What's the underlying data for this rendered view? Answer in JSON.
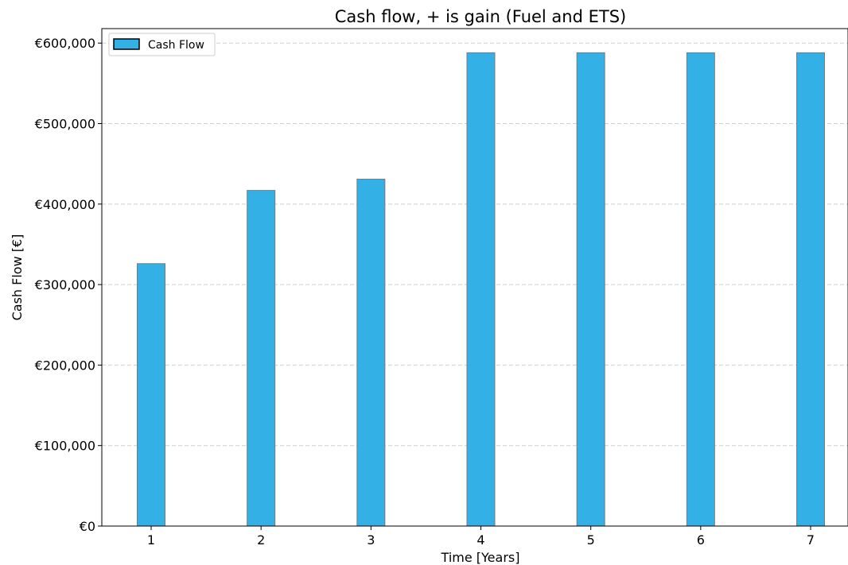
{
  "chart_data": {
    "type": "bar",
    "title": "Cash flow, + is gain (Fuel and ETS)",
    "xlabel": "Time [Years]",
    "ylabel": "Cash Flow [€]",
    "categories": [
      "1",
      "2",
      "3",
      "4",
      "5",
      "6",
      "7"
    ],
    "series": [
      {
        "name": "Cash Flow",
        "values": [
          326000,
          417000,
          431000,
          588000,
          588000,
          588000,
          588000
        ],
        "color": "#33b1e6"
      }
    ],
    "ylim": [
      0,
      618000
    ],
    "yticks": [
      0,
      100000,
      200000,
      300000,
      400000,
      500000,
      600000
    ],
    "ytick_labels": [
      "€0",
      "€100,000",
      "€200,000",
      "€300,000",
      "€400,000",
      "€500,000",
      "€600,000"
    ],
    "grid": "y-dashed",
    "legend_position": "top-left"
  }
}
